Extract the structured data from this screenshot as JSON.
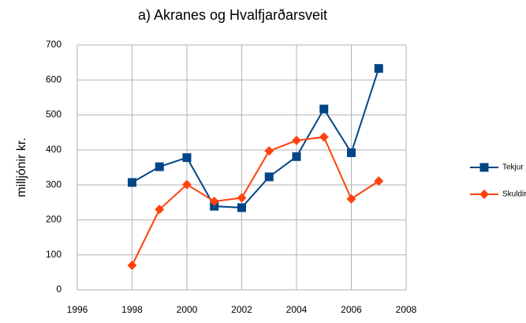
{
  "chart_data": {
    "type": "line",
    "title": "a)   Akranes og Hvalfjarðarsveit",
    "ylabel": "milljónir kr.",
    "x": [
      1998,
      1999,
      2000,
      2001,
      2002,
      2003,
      2004,
      2005,
      2006,
      2007
    ],
    "series": [
      {
        "name": "Tekjur",
        "color": "#004586",
        "marker": "square",
        "values": [
          307,
          352,
          378,
          239,
          235,
          323,
          381,
          517,
          392,
          633
        ]
      },
      {
        "name": "Skuldir",
        "color": "#ff420e",
        "marker": "diamond",
        "values": [
          70,
          230,
          301,
          253,
          263,
          397,
          427,
          437,
          260,
          311
        ]
      }
    ],
    "xlim": [
      1996,
      2008
    ],
    "xticks": [
      1996,
      1998,
      2000,
      2002,
      2004,
      2006,
      2008
    ],
    "ylim": [
      0,
      700
    ],
    "yticks": [
      0,
      100,
      200,
      300,
      400,
      500,
      600,
      700
    ],
    "grid": true,
    "legend": "right"
  }
}
